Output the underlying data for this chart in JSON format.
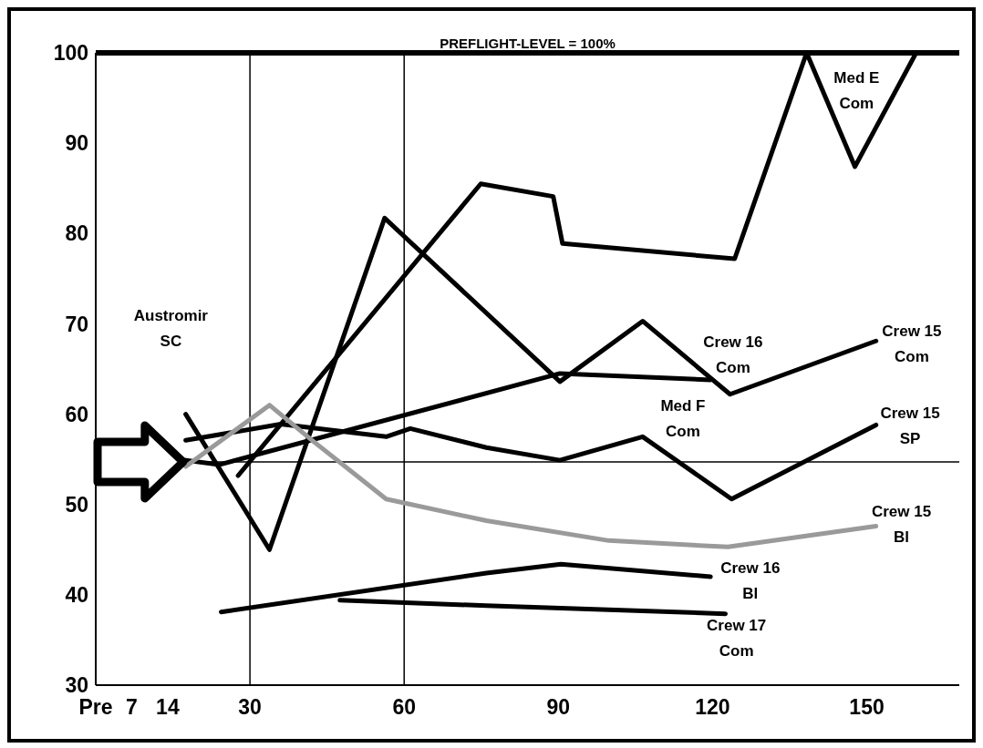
{
  "chart_data": {
    "type": "line",
    "xlim": [
      0,
      168
    ],
    "xticks": [
      {
        "value": 0,
        "label": "Pre"
      },
      7,
      14,
      30,
      60,
      90,
      120,
      150
    ],
    "ylim": [
      30,
      100
    ],
    "yticks": [
      30,
      40,
      50,
      60,
      70,
      80,
      90,
      100
    ],
    "marker": "none",
    "series": [
      {
        "color": "#000000",
        "x": [
          27.7,
          74.9,
          89,
          90.8,
          124.3,
          138.3,
          147.7,
          159.6
        ],
        "values": [
          53.2,
          85.5,
          84.1,
          78.9,
          77.2,
          100,
          87.4,
          100
        ]
      },
      {
        "color": "#000000",
        "x": [
          17.5,
          33.8,
          56.2,
          90.3,
          106.4,
          123.4,
          151.8
        ],
        "values": [
          60,
          45,
          81.7,
          63.6,
          70.3,
          62.2,
          68.1
        ]
      },
      {
        "color": "#000000",
        "x": [
          17.5,
          24,
          90.3,
          119.6
        ],
        "values": [
          54.9,
          54.4,
          64.5,
          63.8
        ]
      },
      {
        "color": "#000000",
        "x": [
          17.5,
          36,
          56.5,
          61.2,
          76,
          90.3,
          106.4,
          123.7,
          151.8
        ],
        "values": [
          57.1,
          58.9,
          57.5,
          58.4,
          56.3,
          54.9,
          57.5,
          50.6,
          58.8
        ]
      },
      {
        "color": "#9a9a9a",
        "x": [
          17.5,
          33.8,
          42.1,
          56.5,
          76,
          99.8,
          123,
          151.8
        ],
        "values": [
          54.2,
          61,
          57.1,
          50.6,
          48.2,
          46,
          45.3,
          47.6
        ]
      },
      {
        "color": "#000000",
        "x": [
          24.4,
          76,
          90.5,
          119.6
        ],
        "values": [
          38.1,
          42.4,
          43.4,
          42
        ]
      },
      {
        "color": "#000000",
        "x": [
          47.5,
          76,
          122.5
        ],
        "values": [
          39.4,
          38.8,
          37.9
        ]
      }
    ],
    "ref_lines": [
      {
        "axis": "y",
        "value": 100,
        "label": "PREFLIGHT-LEVEL = 100%",
        "color": "#000000"
      },
      {
        "axis": "x",
        "value": 30,
        "color": "#000000"
      },
      {
        "axis": "x",
        "value": 60,
        "color": "#000000"
      },
      {
        "axis": "y",
        "value": 54.7,
        "color": "#000000"
      }
    ],
    "annotations": [
      "Austromir\nSC",
      "Med E\nCom",
      "Crew 16\nCom",
      "Crew 15\nCom",
      "Med F\nCom",
      "Crew 15\nSP",
      "Crew 15\nBl",
      "Crew 16\nBl",
      "Crew 17\nCom"
    ]
  }
}
